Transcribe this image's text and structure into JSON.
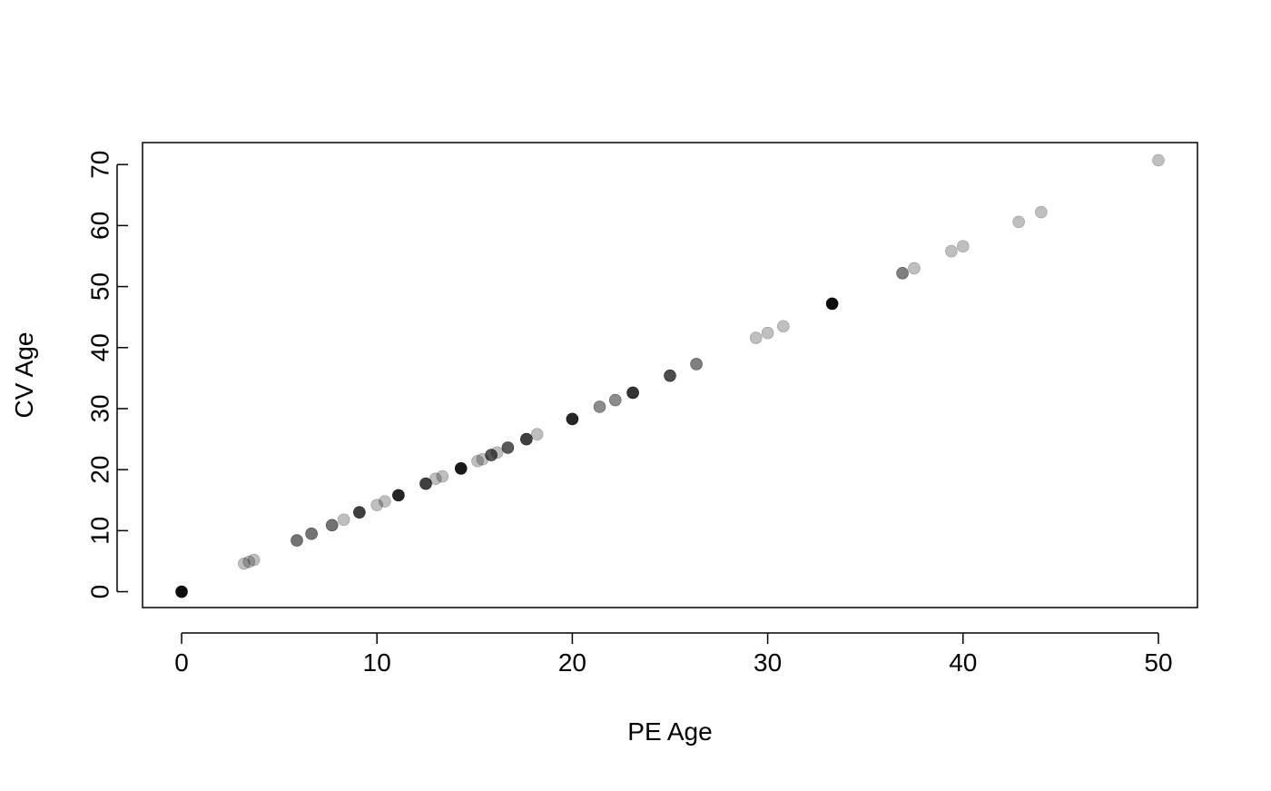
{
  "chart_data": {
    "type": "scatter",
    "title": "",
    "xlabel": "PE Age",
    "ylabel": "CV Age",
    "xlim": [
      -2,
      52
    ],
    "ylim": [
      -2.6,
      73.6
    ],
    "xticks": [
      0,
      10,
      20,
      30,
      40,
      50
    ],
    "yticks": [
      0,
      10,
      20,
      30,
      40,
      50,
      60,
      70
    ],
    "grid": false,
    "legend": "none",
    "point_color": "#000000",
    "points": [
      {
        "x": 0,
        "y": 0,
        "opacity": 0.95
      },
      {
        "x": 3.2,
        "y": 4.6,
        "opacity": 0.25
      },
      {
        "x": 3.45,
        "y": 4.9,
        "opacity": 0.25
      },
      {
        "x": 3.7,
        "y": 5.2,
        "opacity": 0.25
      },
      {
        "x": 5.9,
        "y": 8.4,
        "opacity": 0.55
      },
      {
        "x": 6.65,
        "y": 9.5,
        "opacity": 0.55
      },
      {
        "x": 7.7,
        "y": 10.9,
        "opacity": 0.55
      },
      {
        "x": 8.3,
        "y": 11.8,
        "opacity": 0.25
      },
      {
        "x": 9.1,
        "y": 13.0,
        "opacity": 0.75
      },
      {
        "x": 10.0,
        "y": 14.2,
        "opacity": 0.25
      },
      {
        "x": 10.4,
        "y": 14.8,
        "opacity": 0.25
      },
      {
        "x": 11.1,
        "y": 15.8,
        "opacity": 0.85
      },
      {
        "x": 12.5,
        "y": 17.7,
        "opacity": 0.75
      },
      {
        "x": 13.0,
        "y": 18.5,
        "opacity": 0.25
      },
      {
        "x": 13.35,
        "y": 18.9,
        "opacity": 0.25
      },
      {
        "x": 14.3,
        "y": 20.2,
        "opacity": 0.9
      },
      {
        "x": 15.15,
        "y": 21.4,
        "opacity": 0.25
      },
      {
        "x": 15.4,
        "y": 21.7,
        "opacity": 0.25
      },
      {
        "x": 15.85,
        "y": 22.4,
        "opacity": 0.65
      },
      {
        "x": 16.15,
        "y": 22.8,
        "opacity": 0.25
      },
      {
        "x": 16.7,
        "y": 23.6,
        "opacity": 0.65
      },
      {
        "x": 17.65,
        "y": 25.0,
        "opacity": 0.75
      },
      {
        "x": 18.2,
        "y": 25.8,
        "opacity": 0.25
      },
      {
        "x": 20.0,
        "y": 28.3,
        "opacity": 0.85
      },
      {
        "x": 21.4,
        "y": 30.3,
        "opacity": 0.45
      },
      {
        "x": 22.2,
        "y": 31.4,
        "opacity": 0.45
      },
      {
        "x": 23.1,
        "y": 32.6,
        "opacity": 0.8
      },
      {
        "x": 25.0,
        "y": 35.4,
        "opacity": 0.7
      },
      {
        "x": 26.35,
        "y": 37.3,
        "opacity": 0.5
      },
      {
        "x": 29.4,
        "y": 41.6,
        "opacity": 0.25
      },
      {
        "x": 30.0,
        "y": 42.4,
        "opacity": 0.25
      },
      {
        "x": 30.8,
        "y": 43.5,
        "opacity": 0.25
      },
      {
        "x": 33.3,
        "y": 47.2,
        "opacity": 0.95
      },
      {
        "x": 36.9,
        "y": 52.2,
        "opacity": 0.5
      },
      {
        "x": 37.5,
        "y": 53.0,
        "opacity": 0.25
      },
      {
        "x": 39.4,
        "y": 55.8,
        "opacity": 0.25
      },
      {
        "x": 40.0,
        "y": 56.6,
        "opacity": 0.25
      },
      {
        "x": 42.85,
        "y": 60.6,
        "opacity": 0.25
      },
      {
        "x": 44.0,
        "y": 62.2,
        "opacity": 0.25
      },
      {
        "x": 50.0,
        "y": 70.7,
        "opacity": 0.25
      }
    ]
  }
}
